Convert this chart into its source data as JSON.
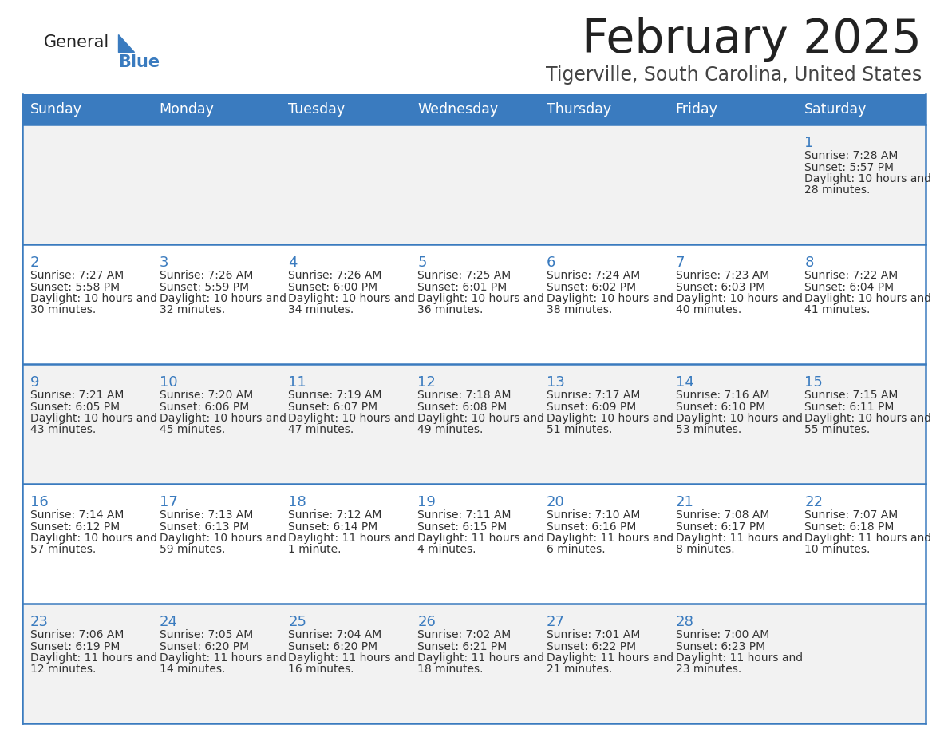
{
  "title": "February 2025",
  "subtitle": "Tigerville, South Carolina, United States",
  "days_of_week": [
    "Sunday",
    "Monday",
    "Tuesday",
    "Wednesday",
    "Thursday",
    "Friday",
    "Saturday"
  ],
  "header_bg": "#3a7bbf",
  "header_text": "#ffffff",
  "cell_bg_odd": "#f2f2f2",
  "cell_bg_even": "#ffffff",
  "cell_border": "#3a7bbf",
  "title_color": "#222222",
  "subtitle_color": "#444444",
  "day_number_color": "#3a7bbf",
  "cell_text_color": "#333333",
  "logo_general_color": "#222222",
  "logo_blue_color": "#3a7bbf",
  "weeks": [
    [
      {
        "day": null,
        "sunrise": null,
        "sunset": null,
        "daylight": null
      },
      {
        "day": null,
        "sunrise": null,
        "sunset": null,
        "daylight": null
      },
      {
        "day": null,
        "sunrise": null,
        "sunset": null,
        "daylight": null
      },
      {
        "day": null,
        "sunrise": null,
        "sunset": null,
        "daylight": null
      },
      {
        "day": null,
        "sunrise": null,
        "sunset": null,
        "daylight": null
      },
      {
        "day": null,
        "sunrise": null,
        "sunset": null,
        "daylight": null
      },
      {
        "day": 1,
        "sunrise": "7:28 AM",
        "sunset": "5:57 PM",
        "daylight": "10 hours and 28 minutes."
      }
    ],
    [
      {
        "day": 2,
        "sunrise": "7:27 AM",
        "sunset": "5:58 PM",
        "daylight": "10 hours and 30 minutes."
      },
      {
        "day": 3,
        "sunrise": "7:26 AM",
        "sunset": "5:59 PM",
        "daylight": "10 hours and 32 minutes."
      },
      {
        "day": 4,
        "sunrise": "7:26 AM",
        "sunset": "6:00 PM",
        "daylight": "10 hours and 34 minutes."
      },
      {
        "day": 5,
        "sunrise": "7:25 AM",
        "sunset": "6:01 PM",
        "daylight": "10 hours and 36 minutes."
      },
      {
        "day": 6,
        "sunrise": "7:24 AM",
        "sunset": "6:02 PM",
        "daylight": "10 hours and 38 minutes."
      },
      {
        "day": 7,
        "sunrise": "7:23 AM",
        "sunset": "6:03 PM",
        "daylight": "10 hours and 40 minutes."
      },
      {
        "day": 8,
        "sunrise": "7:22 AM",
        "sunset": "6:04 PM",
        "daylight": "10 hours and 41 minutes."
      }
    ],
    [
      {
        "day": 9,
        "sunrise": "7:21 AM",
        "sunset": "6:05 PM",
        "daylight": "10 hours and 43 minutes."
      },
      {
        "day": 10,
        "sunrise": "7:20 AM",
        "sunset": "6:06 PM",
        "daylight": "10 hours and 45 minutes."
      },
      {
        "day": 11,
        "sunrise": "7:19 AM",
        "sunset": "6:07 PM",
        "daylight": "10 hours and 47 minutes."
      },
      {
        "day": 12,
        "sunrise": "7:18 AM",
        "sunset": "6:08 PM",
        "daylight": "10 hours and 49 minutes."
      },
      {
        "day": 13,
        "sunrise": "7:17 AM",
        "sunset": "6:09 PM",
        "daylight": "10 hours and 51 minutes."
      },
      {
        "day": 14,
        "sunrise": "7:16 AM",
        "sunset": "6:10 PM",
        "daylight": "10 hours and 53 minutes."
      },
      {
        "day": 15,
        "sunrise": "7:15 AM",
        "sunset": "6:11 PM",
        "daylight": "10 hours and 55 minutes."
      }
    ],
    [
      {
        "day": 16,
        "sunrise": "7:14 AM",
        "sunset": "6:12 PM",
        "daylight": "10 hours and 57 minutes."
      },
      {
        "day": 17,
        "sunrise": "7:13 AM",
        "sunset": "6:13 PM",
        "daylight": "10 hours and 59 minutes."
      },
      {
        "day": 18,
        "sunrise": "7:12 AM",
        "sunset": "6:14 PM",
        "daylight": "11 hours and 1 minute."
      },
      {
        "day": 19,
        "sunrise": "7:11 AM",
        "sunset": "6:15 PM",
        "daylight": "11 hours and 4 minutes."
      },
      {
        "day": 20,
        "sunrise": "7:10 AM",
        "sunset": "6:16 PM",
        "daylight": "11 hours and 6 minutes."
      },
      {
        "day": 21,
        "sunrise": "7:08 AM",
        "sunset": "6:17 PM",
        "daylight": "11 hours and 8 minutes."
      },
      {
        "day": 22,
        "sunrise": "7:07 AM",
        "sunset": "6:18 PM",
        "daylight": "11 hours and 10 minutes."
      }
    ],
    [
      {
        "day": 23,
        "sunrise": "7:06 AM",
        "sunset": "6:19 PM",
        "daylight": "11 hours and 12 minutes."
      },
      {
        "day": 24,
        "sunrise": "7:05 AM",
        "sunset": "6:20 PM",
        "daylight": "11 hours and 14 minutes."
      },
      {
        "day": 25,
        "sunrise": "7:04 AM",
        "sunset": "6:20 PM",
        "daylight": "11 hours and 16 minutes."
      },
      {
        "day": 26,
        "sunrise": "7:02 AM",
        "sunset": "6:21 PM",
        "daylight": "11 hours and 18 minutes."
      },
      {
        "day": 27,
        "sunrise": "7:01 AM",
        "sunset": "6:22 PM",
        "daylight": "11 hours and 21 minutes."
      },
      {
        "day": 28,
        "sunrise": "7:00 AM",
        "sunset": "6:23 PM",
        "daylight": "11 hours and 23 minutes."
      },
      {
        "day": null,
        "sunrise": null,
        "sunset": null,
        "daylight": null
      }
    ]
  ]
}
